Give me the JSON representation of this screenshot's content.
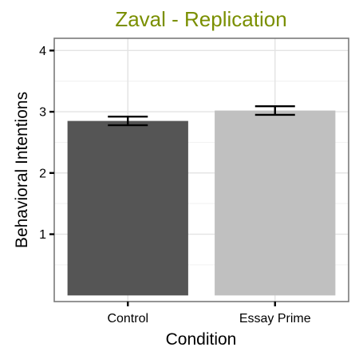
{
  "colors": {
    "title": "#7a8f00",
    "control_bar": "#555555",
    "essay_bar": "#c0c0c0",
    "grid_major": "#e3e3e3",
    "grid_minor": "#f3f3f3",
    "panel_border": "#7a7a7a",
    "error_bar": "#000000"
  },
  "chart_data": {
    "type": "bar",
    "title": "Zaval - Replication",
    "xlabel": "Condition",
    "ylabel": "Behavioral Intentions",
    "categories": [
      "Control",
      "Essay Prime"
    ],
    "values": [
      2.85,
      3.02
    ],
    "error_low": [
      2.78,
      2.95
    ],
    "error_high": [
      2.92,
      3.09
    ],
    "bar_colors": [
      "#555555",
      "#c0c0c0"
    ],
    "yticks": [
      1,
      2,
      3,
      4
    ],
    "ytick_labels": [
      "1",
      "2",
      "3",
      "4"
    ],
    "ylim": [
      -0.1,
      4.2
    ],
    "grid": true,
    "legend": "none"
  }
}
